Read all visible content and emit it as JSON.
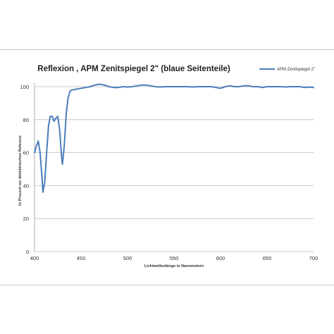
{
  "chart_data": {
    "type": "line",
    "title": "Reflexion , APM Zenitspiegel 2\" (blaue Seitenteile)",
    "xlabel": "Lichtwellenlänge in Nanometern",
    "ylabel": "In Prozent zur dielektrischen Referenz",
    "xlim": [
      400,
      700
    ],
    "ylim": [
      0,
      100
    ],
    "x_ticks": [
      400,
      450,
      500,
      550,
      600,
      650,
      700
    ],
    "y_ticks": [
      0,
      20,
      40,
      60,
      80,
      100
    ],
    "grid": "horizontal",
    "legend": "top-right",
    "series": [
      {
        "name": "APM Zenitspiegel 2\"",
        "color": "#4a7ebb",
        "points": [
          [
            400,
            60
          ],
          [
            402,
            64
          ],
          [
            404,
            67
          ],
          [
            406,
            60
          ],
          [
            408,
            45
          ],
          [
            409,
            36
          ],
          [
            411,
            42
          ],
          [
            413,
            60
          ],
          [
            415,
            76
          ],
          [
            417,
            82
          ],
          [
            419,
            82
          ],
          [
            421,
            79
          ],
          [
            423,
            81
          ],
          [
            425,
            82
          ],
          [
            427,
            74
          ],
          [
            429,
            58
          ],
          [
            430,
            53
          ],
          [
            432,
            64
          ],
          [
            434,
            83
          ],
          [
            436,
            93
          ],
          [
            438,
            97
          ],
          [
            440,
            98
          ],
          [
            445,
            98.5
          ],
          [
            450,
            99
          ],
          [
            455,
            99.5
          ],
          [
            460,
            100
          ],
          [
            465,
            101
          ],
          [
            470,
            101.5
          ],
          [
            475,
            101
          ],
          [
            480,
            100
          ],
          [
            485,
            99.5
          ],
          [
            490,
            99.5
          ],
          [
            495,
            100
          ],
          [
            500,
            99.8
          ],
          [
            505,
            100
          ],
          [
            510,
            100.5
          ],
          [
            515,
            101
          ],
          [
            520,
            101
          ],
          [
            525,
            100.5
          ],
          [
            530,
            100
          ],
          [
            535,
            99.8
          ],
          [
            540,
            100
          ],
          [
            545,
            100
          ],
          [
            550,
            100
          ],
          [
            555,
            100
          ],
          [
            560,
            100
          ],
          [
            565,
            100
          ],
          [
            570,
            99.8
          ],
          [
            575,
            100
          ],
          [
            580,
            100
          ],
          [
            585,
            100
          ],
          [
            590,
            100
          ],
          [
            595,
            99.5
          ],
          [
            600,
            99
          ],
          [
            605,
            100
          ],
          [
            610,
            100.5
          ],
          [
            615,
            100
          ],
          [
            620,
            100
          ],
          [
            625,
            100.5
          ],
          [
            630,
            100.5
          ],
          [
            635,
            100
          ],
          [
            640,
            100
          ],
          [
            645,
            99.5
          ],
          [
            650,
            100
          ],
          [
            655,
            100
          ],
          [
            660,
            100
          ],
          [
            665,
            100
          ],
          [
            670,
            99.8
          ],
          [
            675,
            100
          ],
          [
            680,
            100
          ],
          [
            685,
            100
          ],
          [
            690,
            99.5
          ],
          [
            695,
            99.8
          ],
          [
            700,
            99.5
          ]
        ]
      }
    ]
  }
}
